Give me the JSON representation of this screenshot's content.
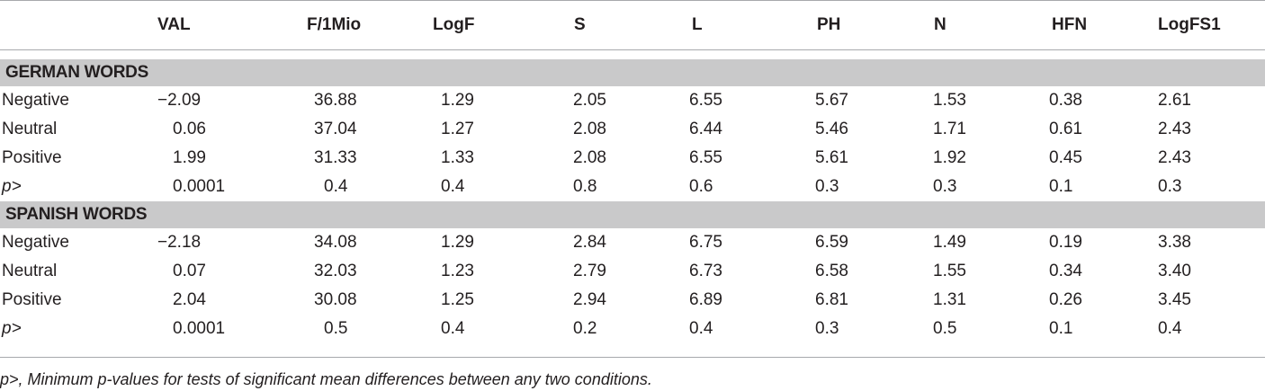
{
  "table": {
    "headers": [
      "",
      "VAL",
      "F/1Mio",
      "LogF",
      "S",
      "L",
      "PH",
      "N",
      "HFN",
      "LogFS1"
    ],
    "sections": [
      {
        "title": "GERMAN WORDS",
        "rows": [
          {
            "label": "Negative",
            "values": [
              "−2.09",
              "36.88",
              "1.29",
              "2.05",
              "6.55",
              "5.67",
              "1.53",
              "0.38",
              "2.61"
            ]
          },
          {
            "label": "Neutral",
            "values": [
              "0.06",
              "37.04",
              "1.27",
              "2.08",
              "6.44",
              "5.46",
              "1.71",
              "0.61",
              "2.43"
            ]
          },
          {
            "label": "Positive",
            "values": [
              "1.99",
              "31.33",
              "1.33",
              "2.08",
              "6.55",
              "5.61",
              "1.92",
              "0.45",
              "2.43"
            ]
          },
          {
            "label": "p>",
            "values": [
              "0.0001",
              "0.4",
              "0.4",
              "0.8",
              "0.6",
              "0.3",
              "0.3",
              "0.1",
              "0.3"
            ]
          }
        ]
      },
      {
        "title": "SPANISH WORDS",
        "rows": [
          {
            "label": "Negative",
            "values": [
              "−2.18",
              "34.08",
              "1.29",
              "2.84",
              "6.75",
              "6.59",
              "1.49",
              "0.19",
              "3.38"
            ]
          },
          {
            "label": "Neutral",
            "values": [
              "0.07",
              "32.03",
              "1.23",
              "2.79",
              "6.73",
              "6.58",
              "1.55",
              "0.34",
              "3.40"
            ]
          },
          {
            "label": "Positive",
            "values": [
              "2.04",
              "30.08",
              "1.25",
              "2.94",
              "6.89",
              "6.81",
              "1.31",
              "0.26",
              "3.45"
            ]
          },
          {
            "label": "p>",
            "values": [
              "0.0001",
              "0.5",
              "0.4",
              "0.2",
              "0.4",
              "0.3",
              "0.5",
              "0.1",
              "0.4"
            ]
          }
        ]
      }
    ]
  },
  "footnote": "p>, Minimum p-values for tests of significant mean differences between any two conditions."
}
